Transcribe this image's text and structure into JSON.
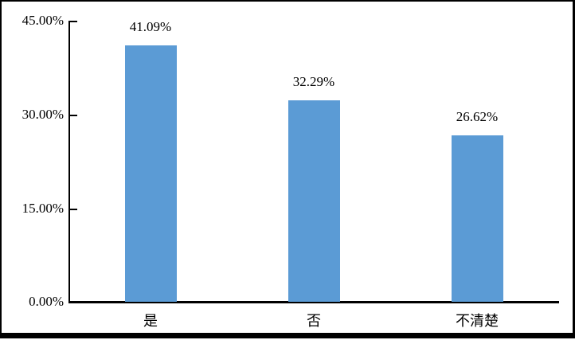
{
  "chart_data": {
    "type": "bar",
    "title": "",
    "xlabel": "",
    "ylabel": "",
    "categories": [
      "是",
      "否",
      "不清楚"
    ],
    "values": [
      41.09,
      32.29,
      26.62
    ],
    "value_labels": [
      "41.09%",
      "32.29%",
      "26.62%"
    ],
    "y_tick_labels": [
      "45.00%",
      "30.00%",
      "15.00%",
      "0.00%"
    ],
    "y_tick_values": [
      45,
      30,
      15,
      0
    ],
    "ylim": [
      0,
      45
    ],
    "grid": "off",
    "legend": "none",
    "bar_color": "#5B9BD5",
    "axis_color": "#000000",
    "text_color": "#000000"
  }
}
